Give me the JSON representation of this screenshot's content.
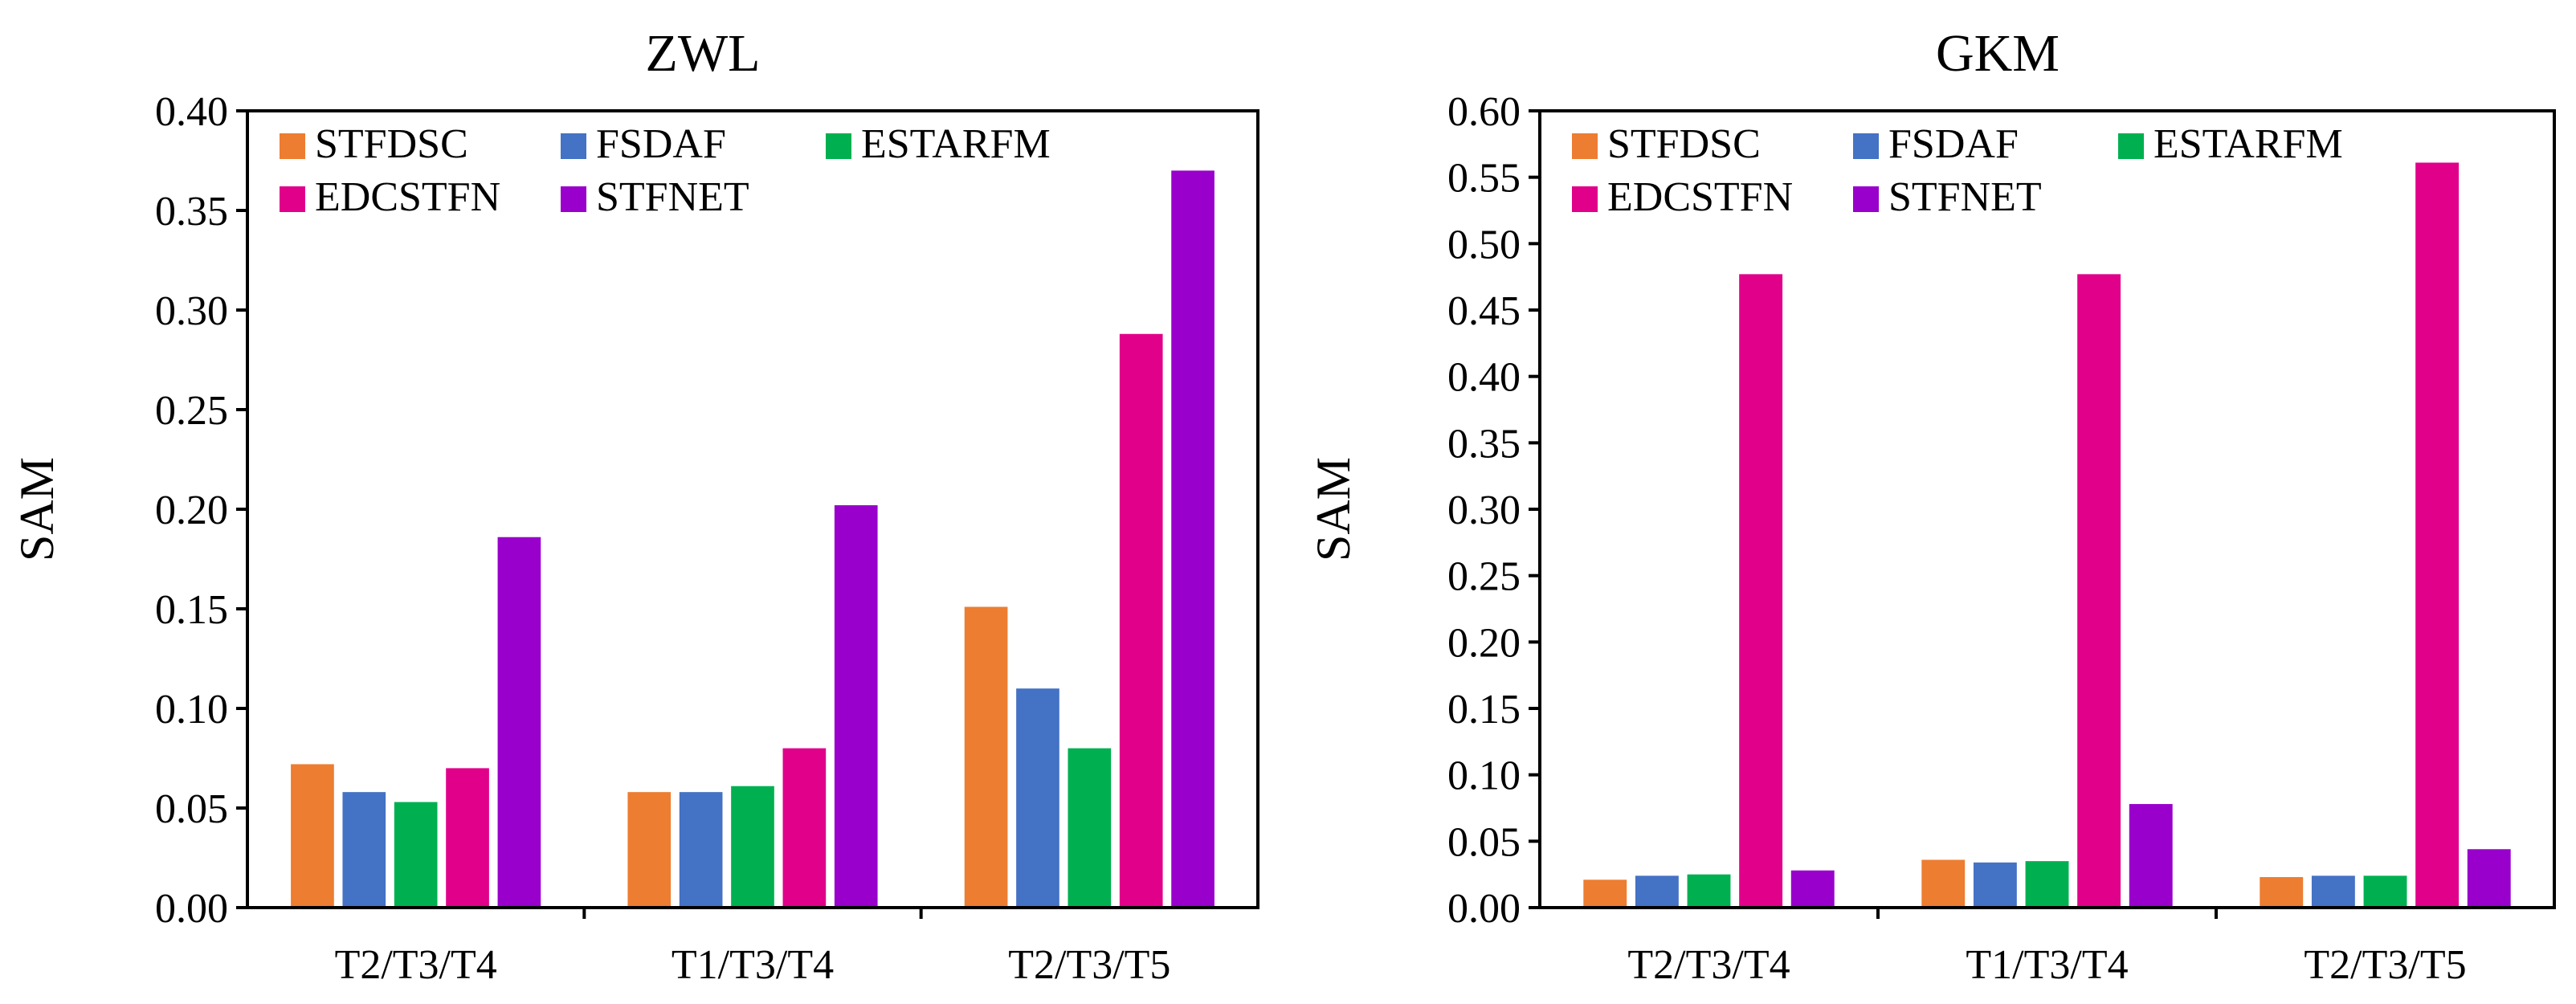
{
  "chart_data": [
    {
      "type": "bar",
      "title": "ZWL",
      "xlabel": "",
      "ylabel": "SAM",
      "categories": [
        "T2/T3/T4",
        "T1/T3/T4",
        "T2/T3/T5"
      ],
      "ylim": [
        0,
        0.4
      ],
      "ytick_step": 0.05,
      "ytick_labels": [
        "0.00",
        "0.05",
        "0.10",
        "0.15",
        "0.20",
        "0.25",
        "0.30",
        "0.35",
        "0.40"
      ],
      "series": [
        {
          "name": "STFDSC",
          "color": "#ED7D31",
          "values": [
            0.072,
            0.058,
            0.151
          ]
        },
        {
          "name": "FSDAF",
          "color": "#4472C4",
          "values": [
            0.058,
            0.058,
            0.11
          ]
        },
        {
          "name": "ESTARFM",
          "color": "#00B050",
          "values": [
            0.053,
            0.061,
            0.08
          ]
        },
        {
          "name": "EDCSTFN",
          "color": "#E0008A",
          "values": [
            0.07,
            0.08,
            0.288
          ]
        },
        {
          "name": "STFNET",
          "color": "#9900CC",
          "values": [
            0.186,
            0.202,
            0.37
          ]
        }
      ],
      "legend": "top-left, three columns"
    },
    {
      "type": "bar",
      "title": "GKM",
      "xlabel": "",
      "ylabel": "SAM",
      "categories": [
        "T2/T3/T4",
        "T1/T3/T4",
        "T2/T3/T5"
      ],
      "ylim": [
        0,
        0.6
      ],
      "ytick_step": 0.05,
      "ytick_labels": [
        "0.00",
        "0.05",
        "0.10",
        "0.15",
        "0.20",
        "0.25",
        "0.30",
        "0.35",
        "0.40",
        "0.45",
        "0.50",
        "0.55",
        "0.60"
      ],
      "series": [
        {
          "name": "STFDSC",
          "color": "#ED7D31",
          "values": [
            0.021,
            0.036,
            0.023
          ]
        },
        {
          "name": "FSDAF",
          "color": "#4472C4",
          "values": [
            0.024,
            0.034,
            0.024
          ]
        },
        {
          "name": "ESTARFM",
          "color": "#00B050",
          "values": [
            0.025,
            0.035,
            0.024
          ]
        },
        {
          "name": "EDCSTFN",
          "color": "#E0008A",
          "values": [
            0.477,
            0.477,
            0.561
          ]
        },
        {
          "name": "STFNET",
          "color": "#9900CC",
          "values": [
            0.028,
            0.078,
            0.044
          ]
        }
      ],
      "legend": "top-left, three columns"
    }
  ]
}
